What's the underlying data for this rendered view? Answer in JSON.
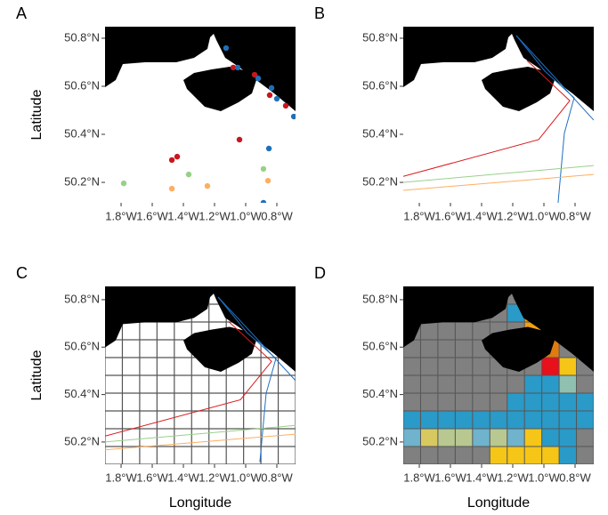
{
  "chart_data": [
    {
      "type": "scatter",
      "title": "A",
      "ylabel": "Latitude",
      "xlim": [
        -1.903,
        -0.68
      ],
      "ylim": [
        50.115,
        50.848
      ],
      "xticks": [
        {
          "value": -1.8,
          "label": "1.8°W"
        },
        {
          "value": -1.6,
          "label": "1.6°W"
        },
        {
          "value": -1.4,
          "label": "1.4°W"
        },
        {
          "value": -1.2,
          "label": "1.2°W"
        },
        {
          "value": -1.0,
          "label": "1.0°W"
        },
        {
          "value": -0.8,
          "label": "0.8°W"
        }
      ],
      "yticks": [
        {
          "value": 50.8,
          "label": "50.8°N"
        },
        {
          "value": 50.6,
          "label": "50.6°N"
        },
        {
          "value": 50.4,
          "label": "50.4°N"
        },
        {
          "value": 50.2,
          "label": "50.2°N"
        }
      ],
      "series": [
        {
          "color": "#c8161e",
          "x": [
            -1.08,
            -0.943,
            -0.846,
            -0.743,
            -1.04,
            -1.44,
            -1.474
          ],
          "y": [
            50.678,
            50.648,
            50.563,
            50.519,
            50.378,
            50.307,
            50.293
          ]
        },
        {
          "color": "#1f6fb8",
          "x": [
            -1.126,
            -1.051,
            -0.92,
            -0.834,
            -0.8,
            -0.691,
            -0.851,
            -0.886
          ],
          "y": [
            50.759,
            50.678,
            50.633,
            50.593,
            50.548,
            50.474,
            50.341,
            50.115
          ]
        },
        {
          "color": "#98d08a",
          "x": [
            -1.783,
            -1.366,
            -0.886
          ],
          "y": [
            50.196,
            50.233,
            50.256
          ]
        },
        {
          "color": "#fdae61",
          "x": [
            -1.474,
            -1.246,
            -0.857
          ],
          "y": [
            50.174,
            50.185,
            50.207
          ]
        }
      ]
    },
    {
      "type": "line",
      "title": "B",
      "xlim": [
        -1.903,
        -0.68
      ],
      "ylim": [
        50.115,
        50.848
      ],
      "xticks": [
        {
          "value": -1.8,
          "label": "1.8°W"
        },
        {
          "value": -1.6,
          "label": "1.6°W"
        },
        {
          "value": -1.4,
          "label": "1.4°W"
        },
        {
          "value": -1.2,
          "label": "1.2°W"
        },
        {
          "value": -1.0,
          "label": "1.0°W"
        },
        {
          "value": -0.8,
          "label": "0.8°W"
        }
      ],
      "yticks": [
        {
          "value": 50.8,
          "label": "50.8°N"
        },
        {
          "value": 50.6,
          "label": "50.6°N"
        },
        {
          "value": 50.4,
          "label": "50.4°N"
        },
        {
          "value": 50.2,
          "label": "50.2°N"
        }
      ],
      "series": [
        {
          "color": "#d7191c",
          "x": [
            -1.903,
            -1.034,
            -0.834,
            -1.063,
            -1.109
          ],
          "y": [
            50.225,
            50.378,
            50.54,
            50.68,
            50.707
          ]
        },
        {
          "color": "#1f6fc0",
          "x": [
            -0.909,
            -0.869,
            -0.806,
            -0.994,
            -1.177
          ],
          "y": [
            50.115,
            50.404,
            50.552,
            50.663,
            50.811
          ]
        },
        {
          "color": "#1f6fc0",
          "x": [
            -1.177,
            -0.92,
            -0.68
          ],
          "y": [
            50.811,
            50.63,
            50.459
          ]
        },
        {
          "color": "#98d08a",
          "x": [
            -1.903,
            -0.68
          ],
          "y": [
            50.2,
            50.27
          ]
        },
        {
          "color": "#fdae61",
          "x": [
            -1.903,
            -0.68
          ],
          "y": [
            50.167,
            50.233
          ]
        }
      ]
    },
    {
      "type": "gridline",
      "title": "C",
      "ylabel": "Latitude",
      "xlabel": "Longitude",
      "xlim": [
        -1.903,
        -0.68
      ],
      "ylim": [
        50.106,
        50.856
      ],
      "xticks": [
        {
          "value": -1.8,
          "label": "1.8°W"
        },
        {
          "value": -1.6,
          "label": "1.6°W"
        },
        {
          "value": -1.4,
          "label": "1.4°W"
        },
        {
          "value": -1.2,
          "label": "1.2°W"
        },
        {
          "value": -1.0,
          "label": "1.0°W"
        },
        {
          "value": -0.8,
          "label": "0.8°W"
        }
      ],
      "yticks": [
        {
          "value": 50.8,
          "label": "50.8°N"
        },
        {
          "value": 50.6,
          "label": "50.6°N"
        },
        {
          "value": 50.4,
          "label": "50.4°N"
        },
        {
          "value": 50.2,
          "label": "50.2°N"
        }
      ],
      "series": [
        {
          "color": "#d7191c",
          "x": [
            -1.903,
            -1.034,
            -0.834,
            -1.063,
            -1.109
          ],
          "y": [
            50.225,
            50.378,
            50.54,
            50.68,
            50.707
          ]
        },
        {
          "color": "#1f6fc0",
          "x": [
            -0.909,
            -0.869,
            -0.806,
            -0.994,
            -1.177
          ],
          "y": [
            50.115,
            50.404,
            50.552,
            50.663,
            50.811
          ]
        },
        {
          "color": "#1f6fc0",
          "x": [
            -1.177,
            -0.92,
            -0.68
          ],
          "y": [
            50.811,
            50.63,
            50.459
          ]
        },
        {
          "color": "#98d08a",
          "x": [
            -1.903,
            -0.68
          ],
          "y": [
            50.2,
            50.27
          ]
        },
        {
          "color": "#fdae61",
          "x": [
            -1.903,
            -0.68
          ],
          "y": [
            50.167,
            50.233
          ]
        }
      ]
    },
    {
      "type": "heatmap",
      "title": "D",
      "xlabel": "Longitude",
      "xlim": [
        -1.903,
        -0.68
      ],
      "ylim": [
        50.106,
        50.856
      ],
      "xticks": [
        {
          "value": -1.8,
          "label": "1.8°W"
        },
        {
          "value": -1.6,
          "label": "1.6°W"
        },
        {
          "value": -1.4,
          "label": "1.4°W"
        },
        {
          "value": -1.2,
          "label": "1.2°W"
        },
        {
          "value": -1.0,
          "label": "1.0°W"
        },
        {
          "value": -0.8,
          "label": "0.8°W"
        }
      ],
      "yticks": [
        {
          "value": 50.8,
          "label": "50.8°N"
        },
        {
          "value": 50.6,
          "label": "50.6°N"
        },
        {
          "value": 50.4,
          "label": "50.4°N"
        },
        {
          "value": 50.2,
          "label": "50.2°N"
        }
      ],
      "background": "#808080",
      "cell_colors": [
        [
          null,
          null,
          null,
          null,
          null,
          null,
          null,
          null,
          null,
          null,
          null
        ],
        [
          null,
          null,
          null,
          null,
          null,
          null,
          "#2a9ac8",
          "#f0a010",
          null,
          null,
          null
        ],
        [
          null,
          null,
          null,
          null,
          null,
          null,
          null,
          "#f0a010",
          "#f0a010",
          null,
          null
        ],
        [
          null,
          null,
          null,
          null,
          null,
          null,
          null,
          null,
          "#e07b10",
          null,
          null
        ],
        [
          null,
          null,
          null,
          null,
          null,
          null,
          null,
          null,
          "#e8101a",
          "#f5c518",
          null
        ],
        [
          null,
          null,
          null,
          null,
          null,
          null,
          null,
          "#2a9ac8",
          "#2a9ac8",
          "#8fc0b0",
          null
        ],
        [
          null,
          null,
          null,
          null,
          null,
          null,
          "#2a9ac8",
          "#2a9ac8",
          "#2a9ac8",
          "#2a9ac8",
          "#2a9ac8"
        ],
        [
          "#2a9ac8",
          "#2a9ac8",
          "#2a9ac8",
          "#2a9ac8",
          "#2a9ac8",
          "#2a9ac8",
          "#2a9ac8",
          "#2a9ac8",
          "#2a9ac8",
          "#2a9ac8",
          "#2a9ac8"
        ],
        [
          "#6fb3cc",
          "#d8c860",
          "#b8c890",
          "#b8c890",
          "#6fb3cc",
          "#b8c890",
          "#6fb3cc",
          "#f5c518",
          "#2a9ac8",
          "#2a9ac8",
          null
        ],
        [
          null,
          null,
          null,
          null,
          null,
          "#f5c518",
          "#f5c518",
          "#f5c518",
          "#f5c518",
          "#2a9ac8",
          null
        ]
      ]
    }
  ]
}
